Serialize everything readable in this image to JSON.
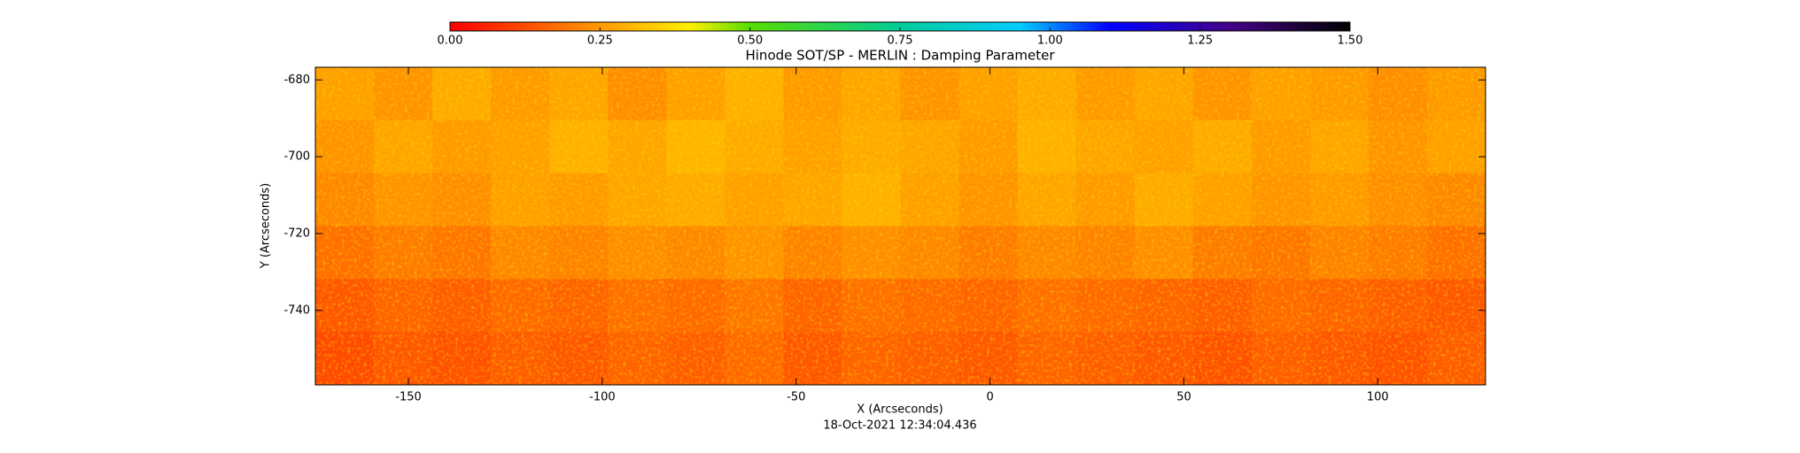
{
  "chart_data": {
    "type": "heatmap",
    "title": "Hinode SOT/SP - MERLIN : Damping Parameter",
    "x_label": "X (Arcseconds)",
    "y_label": "Y (Arcseconds)",
    "timestamp": "18-Oct-2021 12:34:04.436",
    "xlim": [
      -174,
      127.8
    ],
    "ylim": [
      -759.4,
      -676.7
    ],
    "xticks": [
      -150,
      -100,
      -50,
      0,
      50,
      100
    ],
    "yticks": [
      -680,
      -700,
      -720,
      -740
    ],
    "colorbar_lim": [
      0,
      1.5
    ],
    "colorbar_ticks": [
      {
        "value": 0,
        "label": "0.00"
      },
      {
        "value": 0.25,
        "label": "0.25"
      },
      {
        "value": 0.5,
        "label": "0.50"
      },
      {
        "value": 0.75,
        "label": "0.75"
      },
      {
        "value": 1,
        "label": "1.00"
      },
      {
        "value": 1.25,
        "label": "1.25"
      },
      {
        "value": 1.5,
        "label": "1.50"
      }
    ],
    "colorscale": [
      [
        0,
        "#ff0000"
      ],
      [
        0.25,
        "#ff9900"
      ],
      [
        0.4,
        "#ffee00"
      ],
      [
        0.5,
        "#55dd00"
      ],
      [
        0.75,
        "#00cc99"
      ],
      [
        0.95,
        "#00ccff"
      ],
      [
        1.1,
        "#0000ff"
      ],
      [
        1.3,
        "#440088"
      ],
      [
        1.5,
        "#000000"
      ]
    ],
    "z": [
      [
        0.26,
        0.24,
        0.28,
        0.25,
        0.27,
        0.23,
        0.26,
        0.29,
        0.25,
        0.27,
        0.24,
        0.26,
        0.28,
        0.25,
        0.27,
        0.24,
        0.26,
        0.25,
        0.23,
        0.25
      ],
      [
        0.24,
        0.27,
        0.25,
        0.26,
        0.29,
        0.27,
        0.3,
        0.28,
        0.26,
        0.28,
        0.27,
        0.25,
        0.29,
        0.27,
        0.26,
        0.28,
        0.25,
        0.27,
        0.24,
        0.26
      ],
      [
        0.22,
        0.24,
        0.23,
        0.26,
        0.25,
        0.27,
        0.28,
        0.26,
        0.27,
        0.29,
        0.26,
        0.24,
        0.27,
        0.25,
        0.28,
        0.26,
        0.24,
        0.25,
        0.23,
        0.22
      ],
      [
        0.18,
        0.2,
        0.19,
        0.22,
        0.21,
        0.23,
        0.22,
        0.24,
        0.21,
        0.23,
        0.22,
        0.2,
        0.22,
        0.21,
        0.23,
        0.2,
        0.19,
        0.21,
        0.2,
        0.18
      ],
      [
        0.14,
        0.16,
        0.15,
        0.17,
        0.16,
        0.18,
        0.17,
        0.19,
        0.16,
        0.18,
        0.17,
        0.16,
        0.18,
        0.17,
        0.16,
        0.15,
        0.17,
        0.16,
        0.15,
        0.14
      ],
      [
        0.12,
        0.14,
        0.13,
        0.15,
        0.14,
        0.16,
        0.15,
        0.17,
        0.14,
        0.16,
        0.15,
        0.14,
        0.16,
        0.15,
        0.14,
        0.13,
        0.15,
        0.14,
        0.13,
        0.15
      ]
    ]
  }
}
